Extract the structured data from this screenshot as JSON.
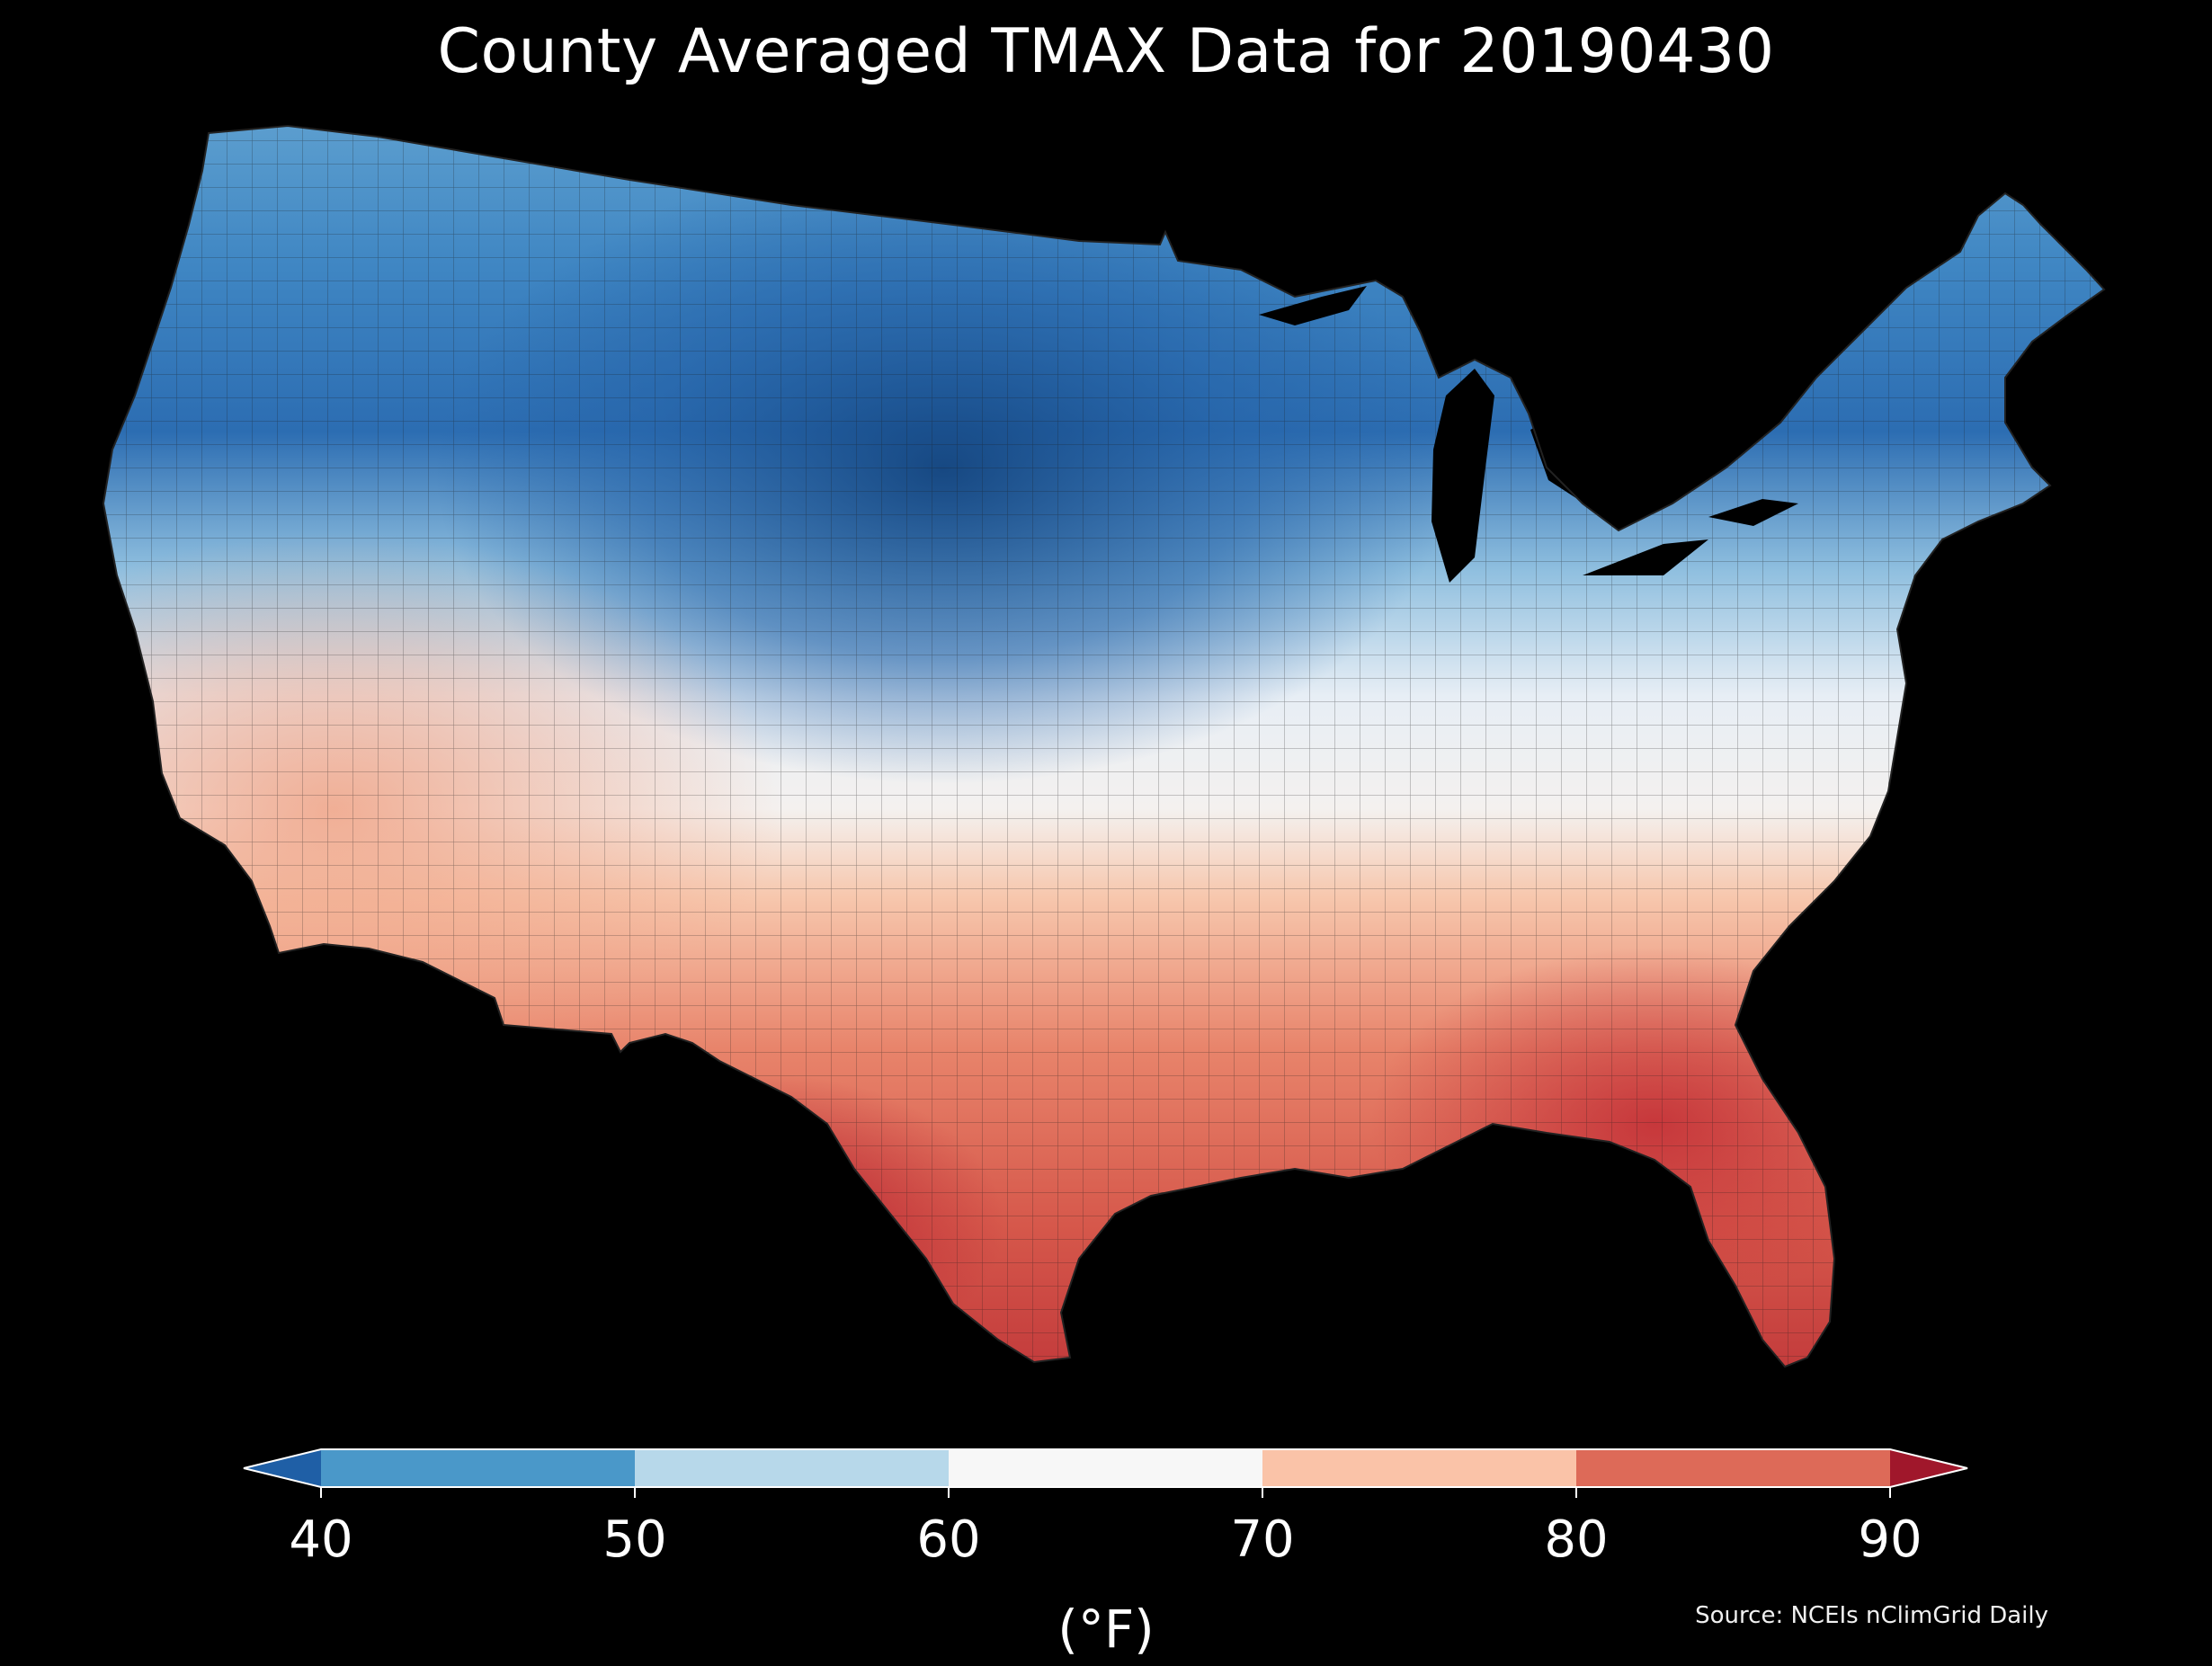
{
  "title": "County Averaged TMAX Data for 20190430",
  "colorbar": {
    "ticks": [
      "40",
      "50",
      "60",
      "70",
      "80",
      "90"
    ],
    "tick_values": [
      40,
      50,
      60,
      70,
      80,
      90
    ],
    "bins": [
      {
        "from": 40,
        "to": 50,
        "color": "#4a98c9"
      },
      {
        "from": 50,
        "to": 60,
        "color": "#b7d8ea"
      },
      {
        "from": 60,
        "to": 70,
        "color": "#f7f7f7"
      },
      {
        "from": 70,
        "to": 80,
        "color": "#fac3a8"
      },
      {
        "from": 80,
        "to": 90,
        "color": "#dd6a58"
      }
    ],
    "under_color": "#1f5fa6",
    "over_color": "#a0172b",
    "units": "(°F)"
  },
  "source": "Source: NCEIs nClimGrid Daily",
  "palette": {
    "background": "#000000",
    "border": "#222222"
  }
}
